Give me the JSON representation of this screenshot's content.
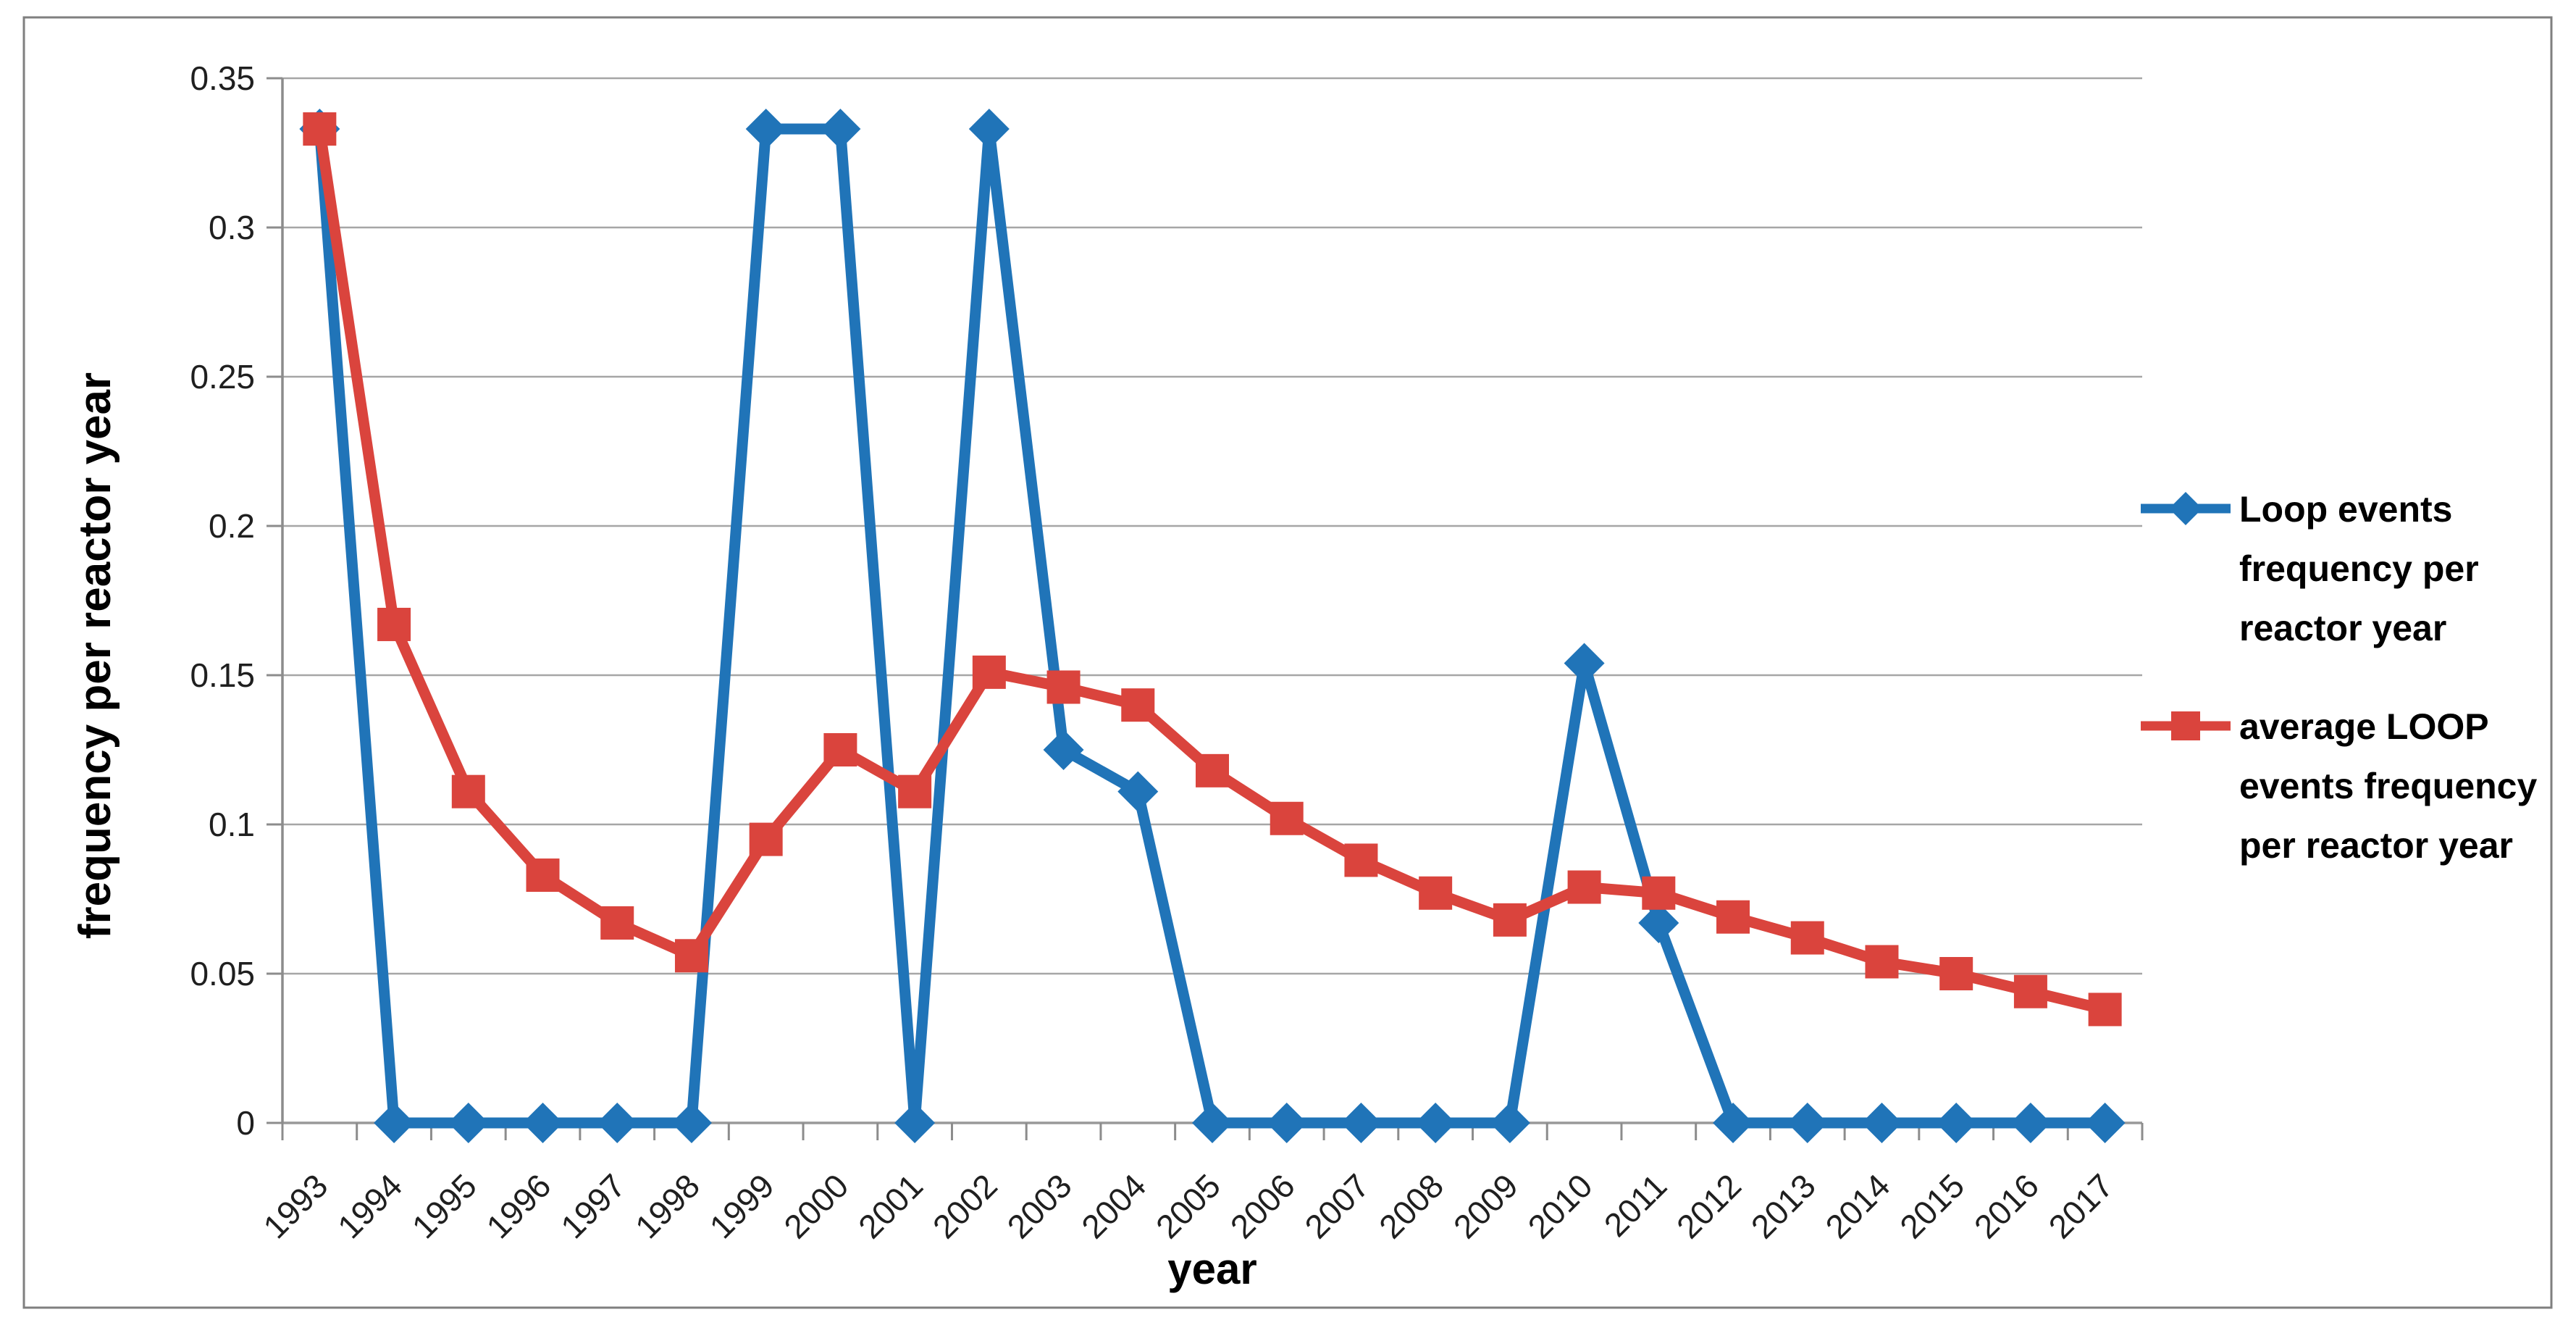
{
  "chart_data": {
    "type": "line",
    "title": "",
    "categories": [
      "1993",
      "1994",
      "1995",
      "1996",
      "1997",
      "1998",
      "1999",
      "2000",
      "2001",
      "2002",
      "2003",
      "2004",
      "2005",
      "2006",
      "2007",
      "2008",
      "2009",
      "2010",
      "2011",
      "2012",
      "2013",
      "2014",
      "2015",
      "2016",
      "2017"
    ],
    "series": [
      {
        "name": "Loop events frequency per reactor year",
        "color": "#2074B8",
        "marker": "diamond",
        "values": [
          0.333,
          0,
          0,
          0,
          0,
          0,
          0.333,
          0.333,
          0,
          0.333,
          0.125,
          0.111,
          0,
          0,
          0,
          0,
          0,
          0.154,
          0.067,
          0,
          0,
          0,
          0,
          0,
          0
        ]
      },
      {
        "name": "average LOOP events frequency per reactor year",
        "color": "#DA443D",
        "marker": "square",
        "values": [
          0.333,
          0.167,
          0.111,
          0.083,
          0.067,
          0.056,
          0.095,
          0.125,
          0.111,
          0.151,
          0.146,
          0.14,
          0.118,
          0.102,
          0.088,
          0.077,
          0.068,
          0.079,
          0.077,
          0.069,
          0.062,
          0.054,
          0.05,
          0.044,
          0.038
        ]
      }
    ],
    "xlabel": "year",
    "ylabel": "frequency per reactor year",
    "ylim": [
      0,
      0.35
    ],
    "ytick_step": 0.05,
    "ytick_labels": [
      "0",
      "0.05",
      "0.1",
      "0.15",
      "0.2",
      "0.25",
      "0.3",
      "0.35"
    ],
    "grid": true,
    "legend_position": "right",
    "legend_lines": [
      [
        "Loop events",
        "frequency per",
        "reactor year"
      ],
      [
        "average LOOP",
        "events frequency",
        "per reactor year"
      ]
    ]
  },
  "styles": {
    "series_blue": "#2074B8",
    "series_red": "#DA443D",
    "gridline": "#A6A6A6",
    "axis": "#8C8C8C",
    "frame_border": "#7F7F7F",
    "tick_text": "#1F1F1F",
    "title_text": "#000000",
    "background": "#FFFFFF"
  }
}
